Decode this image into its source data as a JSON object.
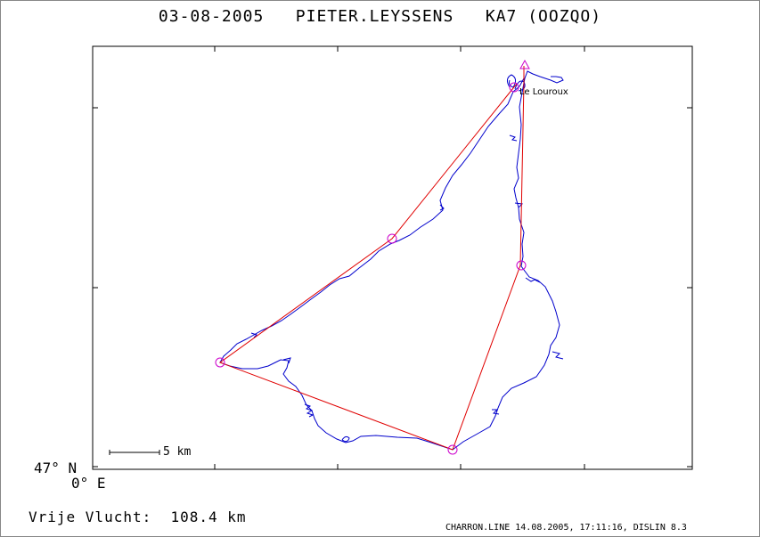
{
  "header": {
    "date": "03-08-2005",
    "pilot": "PIETER.LEYSSENS",
    "glider": "KA7 (OOZQO)"
  },
  "axes": {
    "lat_label": "47° N",
    "lon_label": "0° E"
  },
  "scale_bar": {
    "label": "5 km"
  },
  "turnpoint": {
    "name": "Le Louroux"
  },
  "result": {
    "label": "Vrije Vlucht:",
    "value": "108.4 km"
  },
  "footer": {
    "text": "CHARRON.LINE 14.08.2005, 17:11:16, DISLIN 8.3"
  },
  "colors": {
    "track": "#0000cc",
    "task": "#e00000",
    "marker": "#cc00cc",
    "axes": "#000000"
  }
}
